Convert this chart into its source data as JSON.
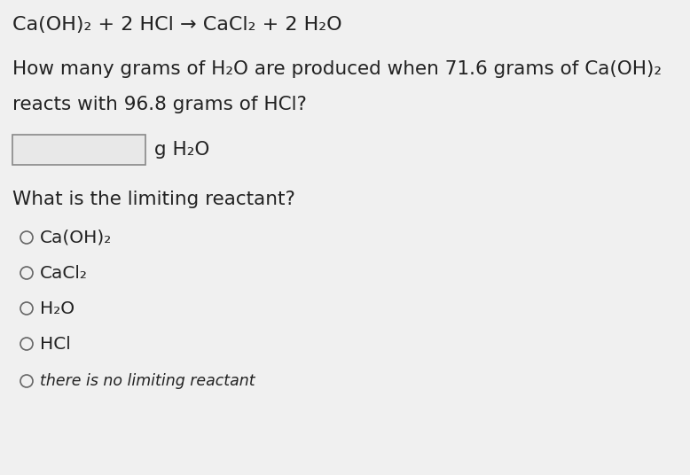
{
  "background_color": "#d8d8d8",
  "content_bg": "#f0f0f0",
  "title_equation": "Ca(OH)₂ + 2 HCl → CaCl₂ + 2 H₂O",
  "question_line1": "How many grams of H₂O are produced when 71.6 grams of Ca(OH)₂",
  "question_line2": "reacts with 96.8 grams of HCl?",
  "input_label": "g H₂O",
  "limiting_question": "What is the limiting reactant?",
  "options": [
    "Ca(OH)₂",
    "CaCl₂",
    "H₂O",
    "HCl",
    "there is no limiting reactant"
  ],
  "text_color": "#222222",
  "box_color": "#e8e8e8",
  "box_border_color": "#888888",
  "circle_color": "#666666",
  "title_fontsize": 16,
  "body_fontsize": 15.5,
  "option_fontsize": 14.5,
  "small_fontsize": 12.5
}
